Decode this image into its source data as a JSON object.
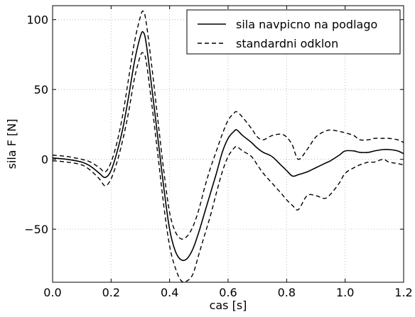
{
  "chart_data": {
    "type": "line",
    "title": "",
    "xlabel": "cas [s]",
    "ylabel": "sila F [N]",
    "xlim": [
      0.0,
      1.2
    ],
    "ylim": [
      -88,
      110
    ],
    "x_ticks": [
      0.0,
      0.2,
      0.4,
      0.6,
      0.8,
      1.0,
      1.2
    ],
    "x_tick_labels": [
      "0.0",
      "0.2",
      "0.4",
      "0.6",
      "0.8",
      "1.0",
      "1.2"
    ],
    "y_ticks": [
      -50,
      0,
      50,
      100
    ],
    "y_tick_labels": [
      "−50",
      "0",
      "50",
      "100"
    ],
    "grid": true,
    "legend_position": "top-right",
    "series": [
      {
        "name": "sila navpicno na podlago",
        "style": "solid",
        "color": "#000000",
        "x": [
          0.0,
          0.05,
          0.1,
          0.13,
          0.16,
          0.18,
          0.2,
          0.22,
          0.24,
          0.26,
          0.28,
          0.3,
          0.31,
          0.32,
          0.34,
          0.36,
          0.38,
          0.4,
          0.42,
          0.44,
          0.46,
          0.48,
          0.5,
          0.52,
          0.54,
          0.56,
          0.58,
          0.6,
          0.62,
          0.63,
          0.65,
          0.68,
          0.7,
          0.72,
          0.75,
          0.78,
          0.8,
          0.82,
          0.84,
          0.87,
          0.9,
          0.93,
          0.95,
          0.98,
          1.0,
          1.03,
          1.05,
          1.08,
          1.1,
          1.13,
          1.15,
          1.18,
          1.2
        ],
        "y": [
          1,
          0,
          -2,
          -5,
          -10,
          -13,
          -8,
          5,
          22,
          45,
          70,
          88,
          91,
          83,
          50,
          15,
          -20,
          -50,
          -66,
          -72,
          -71,
          -64,
          -52,
          -38,
          -24,
          -10,
          5,
          15,
          20,
          21,
          17,
          12,
          8,
          5,
          2,
          -4,
          -8,
          -12,
          -11,
          -9,
          -6,
          -3,
          -1,
          3,
          6,
          6,
          5,
          5,
          6,
          7,
          7,
          6,
          4
        ]
      },
      {
        "name": "standardni odklon",
        "style": "dashed",
        "color": "#000000",
        "x": [
          0.0,
          0.05,
          0.1,
          0.13,
          0.16,
          0.18,
          0.2,
          0.22,
          0.24,
          0.26,
          0.28,
          0.3,
          0.31,
          0.32,
          0.34,
          0.36,
          0.38,
          0.4,
          0.42,
          0.44,
          0.46,
          0.48,
          0.5,
          0.52,
          0.54,
          0.56,
          0.58,
          0.6,
          0.62,
          0.63,
          0.65,
          0.68,
          0.7,
          0.72,
          0.75,
          0.78,
          0.8,
          0.82,
          0.84,
          0.87,
          0.9,
          0.93,
          0.95,
          0.98,
          1.0,
          1.03,
          1.05,
          1.08,
          1.1,
          1.13,
          1.15,
          1.18,
          1.2
        ],
        "y": [
          3,
          2,
          0,
          -2,
          -6,
          -9,
          -2,
          12,
          32,
          58,
          84,
          102,
          106,
          98,
          65,
          28,
          -8,
          -38,
          -52,
          -57,
          -55,
          -48,
          -36,
          -20,
          -6,
          6,
          18,
          28,
          33,
          34,
          30,
          22,
          16,
          14,
          17,
          18,
          16,
          10,
          0,
          7,
          16,
          20,
          21,
          20,
          19,
          17,
          14,
          14,
          15,
          15,
          15,
          14,
          12
        ]
      },
      {
        "name": "",
        "style": "dashed",
        "color": "#000000",
        "x": [
          0.0,
          0.05,
          0.1,
          0.13,
          0.16,
          0.18,
          0.2,
          0.22,
          0.24,
          0.26,
          0.28,
          0.3,
          0.31,
          0.32,
          0.34,
          0.36,
          0.38,
          0.4,
          0.42,
          0.44,
          0.46,
          0.48,
          0.5,
          0.52,
          0.54,
          0.56,
          0.58,
          0.6,
          0.62,
          0.63,
          0.65,
          0.68,
          0.7,
          0.72,
          0.75,
          0.78,
          0.8,
          0.82,
          0.84,
          0.87,
          0.9,
          0.93,
          0.95,
          0.98,
          1.0,
          1.03,
          1.05,
          1.08,
          1.1,
          1.13,
          1.15,
          1.18,
          1.2
        ],
        "y": [
          -1,
          -2,
          -4,
          -8,
          -14,
          -19,
          -14,
          -2,
          14,
          34,
          58,
          74,
          76,
          70,
          38,
          3,
          -33,
          -62,
          -78,
          -87,
          -87,
          -82,
          -68,
          -54,
          -40,
          -24,
          -9,
          2,
          8,
          9,
          6,
          2,
          -4,
          -10,
          -17,
          -24,
          -29,
          -33,
          -36,
          -26,
          -26,
          -28,
          -25,
          -17,
          -10,
          -6,
          -4,
          -2,
          -2,
          0,
          -2,
          -3,
          -4
        ]
      }
    ]
  }
}
